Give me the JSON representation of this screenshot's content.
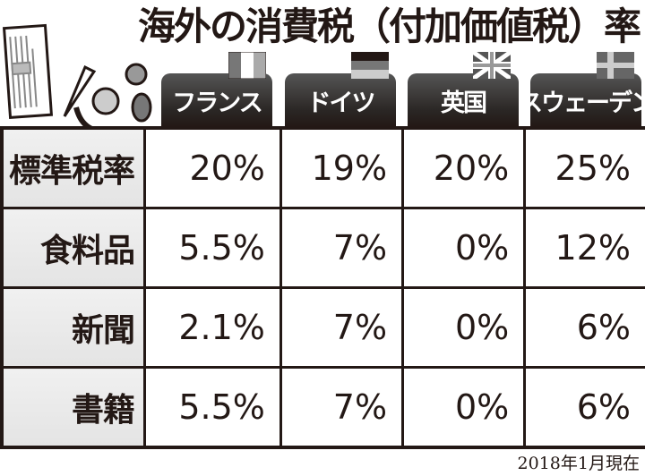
{
  "chart_data": {
    "type": "table",
    "title": "海外の消費税（付加価値税）率",
    "columns": [
      "フランス",
      "ドイツ",
      "英国",
      "スウェーデン"
    ],
    "rows": [
      {
        "label": "標準税率",
        "values": [
          "20%",
          "19%",
          "20%",
          "25%"
        ]
      },
      {
        "label": "食料品",
        "values": [
          "5.5%",
          "7%",
          "0%",
          "12%"
        ]
      },
      {
        "label": "新聞",
        "values": [
          "2.1%",
          "7%",
          "0%",
          "6%"
        ]
      },
      {
        "label": "書籍",
        "values": [
          "5.5%",
          "7%",
          "0%",
          "6%"
        ]
      }
    ],
    "note": "2018年1月現在"
  },
  "illustration": {
    "newspaper_label": "新聞"
  },
  "flags": [
    "france-flag",
    "germany-flag",
    "uk-flag",
    "sweden-flag"
  ],
  "colors": {
    "header": "#231815",
    "row_header_bg": "#e8e8e8",
    "cell_bg": "#ffffff"
  }
}
